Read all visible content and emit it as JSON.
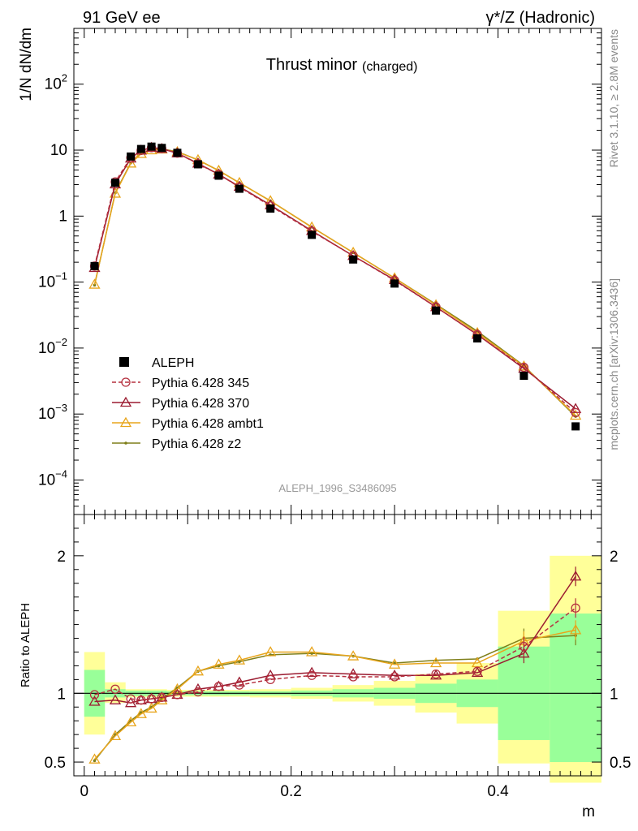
{
  "header": {
    "left": "91 GeV ee",
    "right": "γ*/Z (Hadronic)"
  },
  "side_text": {
    "rivet": "Rivet 3.1.10, ≥ 2.8M events",
    "mcplots": "mcplots.cern.ch [arXiv:1306.3436]"
  },
  "chart_data": [
    {
      "type": "line",
      "title": "Thrust minor",
      "title_suffix": "(charged)",
      "ylabel": "1/N dN/dm",
      "yscale": "log",
      "ylim": [
        3e-05,
        700
      ],
      "xlim": [
        -0.01,
        0.5
      ],
      "yticks": [
        {
          "v": 0.0001,
          "base": "10",
          "exp": "−4"
        },
        {
          "v": 0.001,
          "base": "10",
          "exp": "−3"
        },
        {
          "v": 0.01,
          "base": "10",
          "exp": "−2"
        },
        {
          "v": 0.1,
          "base": "10",
          "exp": "−1"
        },
        {
          "v": 1,
          "base": "1",
          "exp": ""
        },
        {
          "v": 10,
          "base": "10",
          "exp": ""
        },
        {
          "v": 100,
          "base": "10",
          "exp": "2"
        }
      ],
      "analysis_label": "ALEPH_1996_S3486095",
      "x": [
        0.01,
        0.03,
        0.045,
        0.055,
        0.065,
        0.075,
        0.09,
        0.11,
        0.13,
        0.15,
        0.18,
        0.22,
        0.26,
        0.3,
        0.34,
        0.38,
        0.425,
        0.475
      ],
      "bin_edges": [
        0.0,
        0.02,
        0.04,
        0.05,
        0.06,
        0.07,
        0.08,
        0.1,
        0.12,
        0.14,
        0.16,
        0.2,
        0.24,
        0.28,
        0.32,
        0.36,
        0.4,
        0.45,
        0.5
      ],
      "data": {
        "name": "ALEPH",
        "values": [
          0.175,
          3.2,
          8.0,
          10.4,
          11.3,
          10.8,
          9.1,
          6.1,
          4.1,
          2.6,
          1.3,
          0.52,
          0.22,
          0.095,
          0.037,
          0.014,
          0.0038,
          0.00065
        ]
      },
      "series": [
        {
          "name": "Pythia 6.428 345",
          "color": "#b5303f",
          "marker": "circle",
          "dash": true,
          "values": [
            0.175,
            3.3,
            7.7,
            9.9,
            10.9,
            10.5,
            9.0,
            6.2,
            4.3,
            2.75,
            1.43,
            0.59,
            0.25,
            0.106,
            0.042,
            0.016,
            0.0051,
            0.00105
          ]
        },
        {
          "name": "Pythia 6.428 370",
          "color": "#9b1b30",
          "marker": "triangle",
          "dash": false,
          "values": [
            0.165,
            3.05,
            7.5,
            9.9,
            10.9,
            10.5,
            9.0,
            6.3,
            4.3,
            2.8,
            1.47,
            0.6,
            0.25,
            0.108,
            0.042,
            0.016,
            0.0049,
            0.0012
          ]
        },
        {
          "name": "Pythia 6.428 ambt1",
          "color": "#e8a51c",
          "marker": "triangle",
          "dash": false,
          "values": [
            0.092,
            2.2,
            6.3,
            8.8,
            10.0,
            10.3,
            9.4,
            7.1,
            4.9,
            3.2,
            1.7,
            0.68,
            0.28,
            0.115,
            0.045,
            0.017,
            0.0053,
            0.00095
          ]
        },
        {
          "name": "Pythia 6.428 z2",
          "color": "#7f7f1a",
          "marker": "dot",
          "dash": false,
          "values": [
            0.09,
            2.25,
            6.4,
            8.9,
            10.1,
            10.4,
            9.5,
            7.1,
            4.9,
            3.2,
            1.7,
            0.68,
            0.28,
            0.115,
            0.046,
            0.018,
            0.0054,
            0.00092
          ]
        }
      ]
    },
    {
      "type": "line",
      "ylabel": "Ratio to ALEPH",
      "xlabel": "m",
      "ylim": [
        0.4,
        2.3
      ],
      "xlim": [
        -0.01,
        0.5
      ],
      "xticks": [
        0,
        0.2,
        0.4
      ],
      "xtick_labels": [
        "0",
        "0.2",
        "0.4"
      ],
      "yticks": [
        0.5,
        1,
        2
      ],
      "ytick_labels": [
        "0.5",
        "1",
        "2"
      ],
      "band_stat": [
        [
          0.83,
          1.17
        ],
        [
          0.97,
          1.03
        ],
        [
          0.98,
          1.02
        ],
        [
          0.98,
          1.02
        ],
        [
          0.98,
          1.02
        ],
        [
          0.98,
          1.02
        ],
        [
          0.985,
          1.015
        ],
        [
          0.985,
          1.015
        ],
        [
          0.985,
          1.015
        ],
        [
          0.985,
          1.015
        ],
        [
          0.985,
          1.015
        ],
        [
          0.98,
          1.02
        ],
        [
          0.97,
          1.03
        ],
        [
          0.96,
          1.04
        ],
        [
          0.93,
          1.07
        ],
        [
          0.9,
          1.1
        ],
        [
          0.66,
          1.34
        ],
        [
          0.5,
          1.58
        ]
      ],
      "band_total": [
        [
          0.7,
          1.3
        ],
        [
          0.93,
          1.08
        ],
        [
          0.97,
          1.03
        ],
        [
          0.97,
          1.03
        ],
        [
          0.97,
          1.03
        ],
        [
          0.97,
          1.03
        ],
        [
          0.975,
          1.025
        ],
        [
          0.975,
          1.025
        ],
        [
          0.975,
          1.025
        ],
        [
          0.975,
          1.025
        ],
        [
          0.97,
          1.03
        ],
        [
          0.96,
          1.04
        ],
        [
          0.94,
          1.06
        ],
        [
          0.91,
          1.09
        ],
        [
          0.86,
          1.14
        ],
        [
          0.78,
          1.22
        ],
        [
          0.49,
          1.6
        ],
        [
          0.35,
          2.0
        ]
      ],
      "series": [
        {
          "name": "Pythia 6.428 345",
          "values": [
            0.99,
            1.03,
            0.96,
            0.95,
            0.96,
            0.97,
            0.99,
            1.01,
            1.05,
            1.06,
            1.1,
            1.13,
            1.12,
            1.12,
            1.14,
            1.16,
            1.34,
            1.62
          ]
        },
        {
          "name": "Pythia 6.428 370",
          "values": [
            0.94,
            0.95,
            0.93,
            0.95,
            0.96,
            0.97,
            0.99,
            1.03,
            1.05,
            1.08,
            1.13,
            1.15,
            1.14,
            1.13,
            1.13,
            1.15,
            1.29,
            1.85
          ]
        },
        {
          "name": "Pythia 6.428 ambt1",
          "values": [
            0.52,
            0.69,
            0.79,
            0.85,
            0.89,
            0.95,
            1.03,
            1.16,
            1.21,
            1.24,
            1.3,
            1.3,
            1.27,
            1.21,
            1.22,
            1.22,
            1.38,
            1.46
          ]
        },
        {
          "name": "Pythia 6.428 z2",
          "values": [
            0.51,
            0.7,
            0.8,
            0.86,
            0.9,
            0.96,
            1.04,
            1.16,
            1.2,
            1.23,
            1.28,
            1.29,
            1.27,
            1.22,
            1.24,
            1.25,
            1.4,
            1.42
          ]
        }
      ]
    }
  ]
}
